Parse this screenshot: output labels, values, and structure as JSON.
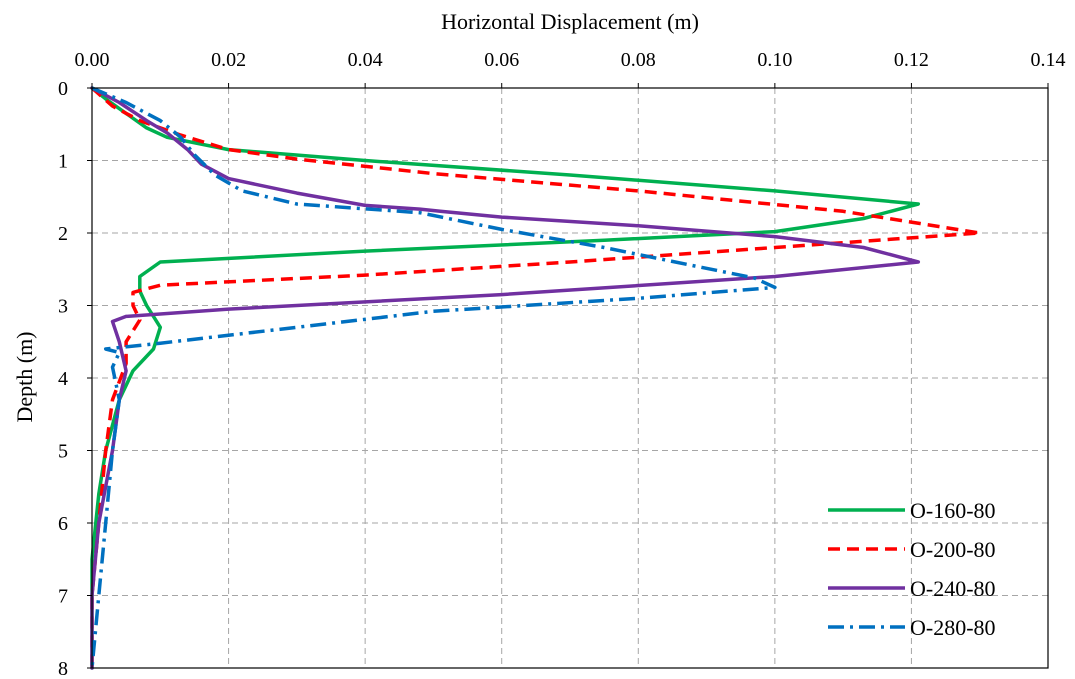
{
  "chart_data": {
    "type": "line",
    "xlabel": "Horizontal Displacement (m)",
    "ylabel": "Depth (m)",
    "x_axis_position": "top",
    "y_inverted": true,
    "xlim": [
      0,
      0.14
    ],
    "ylim": [
      0,
      8
    ],
    "x_ticks": [
      "0.00",
      "0.02",
      "0.04",
      "0.06",
      "0.08",
      "0.10",
      "0.12",
      "0.14"
    ],
    "x_tick_values": [
      0,
      0.02,
      0.04,
      0.06,
      0.08,
      0.1,
      0.12,
      0.14
    ],
    "y_ticks": [
      "0",
      "1",
      "2",
      "3",
      "4",
      "5",
      "6",
      "7",
      "8"
    ],
    "y_tick_values": [
      0,
      1,
      2,
      3,
      4,
      5,
      6,
      7,
      8
    ],
    "grid": true,
    "legend_position": "bottom-right",
    "series": [
      {
        "name": "O-160-80",
        "color": "#00b050",
        "dash": "solid",
        "points": [
          [
            0,
            0
          ],
          [
            0.002,
            0.15
          ],
          [
            0.005,
            0.35
          ],
          [
            0.008,
            0.55
          ],
          [
            0.011,
            0.68
          ],
          [
            0.02,
            0.85
          ],
          [
            0.04,
            1.0
          ],
          [
            0.07,
            1.2
          ],
          [
            0.1,
            1.42
          ],
          [
            0.121,
            1.6
          ],
          [
            0.113,
            1.8
          ],
          [
            0.1,
            1.98
          ],
          [
            0.075,
            2.1
          ],
          [
            0.04,
            2.25
          ],
          [
            0.01,
            2.4
          ],
          [
            0.007,
            2.6
          ],
          [
            0.007,
            2.8
          ],
          [
            0.008,
            3.0
          ],
          [
            0.01,
            3.3
          ],
          [
            0.009,
            3.6
          ],
          [
            0.006,
            3.9
          ],
          [
            0.004,
            4.3
          ],
          [
            0.002,
            5.0
          ],
          [
            0.001,
            5.6
          ],
          [
            0.0,
            6.5
          ],
          [
            0.0,
            7.2
          ],
          [
            0.0,
            8.0
          ]
        ]
      },
      {
        "name": "O-200-80",
        "color": "#ff0000",
        "dash": "dashed",
        "points": [
          [
            0,
            0
          ],
          [
            0.003,
            0.25
          ],
          [
            0.007,
            0.45
          ],
          [
            0.013,
            0.65
          ],
          [
            0.02,
            0.85
          ],
          [
            0.03,
            0.98
          ],
          [
            0.05,
            1.18
          ],
          [
            0.08,
            1.42
          ],
          [
            0.11,
            1.7
          ],
          [
            0.13,
            2.0
          ],
          [
            0.1,
            2.2
          ],
          [
            0.07,
            2.4
          ],
          [
            0.04,
            2.58
          ],
          [
            0.01,
            2.72
          ],
          [
            0.006,
            2.82
          ],
          [
            0.006,
            3.0
          ],
          [
            0.007,
            3.2
          ],
          [
            0.005,
            3.5
          ],
          [
            0.005,
            3.8
          ],
          [
            0.003,
            4.3
          ],
          [
            0.002,
            5.0
          ],
          [
            0.001,
            6.0
          ],
          [
            0.0,
            7.0
          ],
          [
            0.0,
            8.0
          ]
        ]
      },
      {
        "name": "O-240-80",
        "color": "#7030a0",
        "dash": "solid",
        "points": [
          [
            0,
            0
          ],
          [
            0.004,
            0.2
          ],
          [
            0.008,
            0.45
          ],
          [
            0.011,
            0.62
          ],
          [
            0.014,
            0.85
          ],
          [
            0.016,
            1.05
          ],
          [
            0.02,
            1.25
          ],
          [
            0.03,
            1.45
          ],
          [
            0.04,
            1.62
          ],
          [
            0.048,
            1.67
          ],
          [
            0.051,
            1.7
          ],
          [
            0.06,
            1.78
          ],
          [
            0.08,
            1.9
          ],
          [
            0.1,
            2.05
          ],
          [
            0.113,
            2.2
          ],
          [
            0.121,
            2.4
          ],
          [
            0.1,
            2.6
          ],
          [
            0.06,
            2.85
          ],
          [
            0.02,
            3.05
          ],
          [
            0.005,
            3.15
          ],
          [
            0.003,
            3.22
          ],
          [
            0.004,
            3.5
          ],
          [
            0.005,
            3.9
          ],
          [
            0.004,
            4.3
          ],
          [
            0.003,
            5.0
          ],
          [
            0.001,
            6.0
          ],
          [
            0.0,
            7.0
          ],
          [
            0.0,
            8.0
          ]
        ]
      },
      {
        "name": "O-280-80",
        "color": "#0070c0",
        "dash": "dashdot",
        "points": [
          [
            0,
            0
          ],
          [
            0.005,
            0.2
          ],
          [
            0.01,
            0.45
          ],
          [
            0.013,
            0.68
          ],
          [
            0.015,
            0.92
          ],
          [
            0.018,
            1.2
          ],
          [
            0.022,
            1.42
          ],
          [
            0.03,
            1.6
          ],
          [
            0.042,
            1.68
          ],
          [
            0.048,
            1.72
          ],
          [
            0.06,
            1.95
          ],
          [
            0.075,
            2.2
          ],
          [
            0.088,
            2.45
          ],
          [
            0.097,
            2.62
          ],
          [
            0.1,
            2.75
          ],
          [
            0.08,
            2.9
          ],
          [
            0.05,
            3.08
          ],
          [
            0.03,
            3.3
          ],
          [
            0.01,
            3.52
          ],
          [
            0.002,
            3.6
          ],
          [
            0.004,
            3.65
          ],
          [
            0.003,
            3.85
          ],
          [
            0.004,
            4.3
          ],
          [
            0.003,
            5.0
          ],
          [
            0.002,
            6.0
          ],
          [
            0.001,
            7.0
          ],
          [
            0.0,
            8.0
          ]
        ]
      }
    ]
  }
}
